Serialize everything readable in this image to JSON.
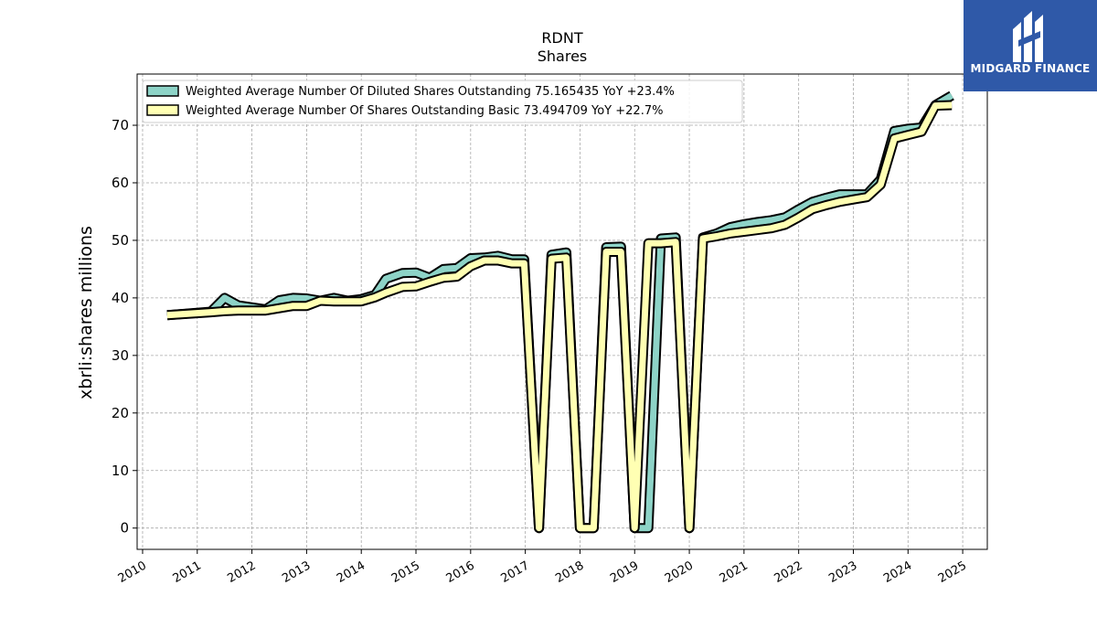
{
  "chart_data": {
    "type": "line",
    "title": "RDNT",
    "subtitle": "Shares",
    "ylabel": "xbrli:shares millions",
    "xlabel": "",
    "xlim": [
      2009.9,
      2025.45
    ],
    "ylim": [
      -3.7,
      78.9
    ],
    "yticks": [
      0,
      10,
      20,
      30,
      40,
      50,
      60,
      70
    ],
    "xticks": [
      "2010",
      "2011",
      "2012",
      "2013",
      "2014",
      "2015",
      "2016",
      "2017",
      "2018",
      "2019",
      "2020",
      "2021",
      "2022",
      "2023",
      "2024",
      "2025"
    ],
    "grid": true,
    "legend_position": "top-left",
    "series": [
      {
        "name": "Weighted Average Number Of Diluted Shares Outstanding  75.165435 YoY +23.4%",
        "color": "#8dd3c7",
        "points": [
          [
            2010.45,
            37.0
          ],
          [
            2011.25,
            37.6
          ],
          [
            2011.5,
            40.0
          ],
          [
            2011.75,
            38.7
          ],
          [
            2012.25,
            38.0
          ],
          [
            2012.5,
            39.6
          ],
          [
            2012.75,
            40.0
          ],
          [
            2013.0,
            39.9
          ],
          [
            2013.25,
            39.5
          ],
          [
            2013.5,
            40.0
          ],
          [
            2013.75,
            39.5
          ],
          [
            2014.0,
            39.8
          ],
          [
            2014.25,
            40.5
          ],
          [
            2014.45,
            43.3
          ],
          [
            2014.75,
            44.3
          ],
          [
            2015.0,
            44.4
          ],
          [
            2015.25,
            43.5
          ],
          [
            2015.5,
            45.0
          ],
          [
            2015.75,
            45.2
          ],
          [
            2016.0,
            46.9
          ],
          [
            2016.25,
            47.0
          ],
          [
            2016.5,
            47.3
          ],
          [
            2016.75,
            46.7
          ],
          [
            2016.98,
            46.7
          ],
          [
            2017.25,
            0.0
          ],
          [
            2017.48,
            47.5
          ],
          [
            2017.75,
            47.9
          ],
          [
            2018.0,
            0.0
          ],
          [
            2018.25,
            0.0
          ],
          [
            2018.48,
            48.8
          ],
          [
            2018.75,
            48.9
          ],
          [
            2019.0,
            0.0
          ],
          [
            2019.25,
            0.0
          ],
          [
            2019.48,
            50.3
          ],
          [
            2019.75,
            50.5
          ],
          [
            2020.0,
            0.0
          ],
          [
            2020.25,
            50.5
          ],
          [
            2020.5,
            51.2
          ],
          [
            2020.75,
            52.3
          ],
          [
            2021.0,
            52.8
          ],
          [
            2021.25,
            53.2
          ],
          [
            2021.5,
            53.5
          ],
          [
            2021.75,
            54.0
          ],
          [
            2022.0,
            55.4
          ],
          [
            2022.25,
            56.7
          ],
          [
            2022.5,
            57.4
          ],
          [
            2022.75,
            58.0
          ],
          [
            2023.0,
            58.0
          ],
          [
            2023.25,
            58.0
          ],
          [
            2023.5,
            60.6
          ],
          [
            2023.75,
            69.0
          ],
          [
            2024.0,
            69.4
          ],
          [
            2024.25,
            69.6
          ],
          [
            2024.5,
            73.5
          ],
          [
            2024.8,
            75.165435
          ]
        ]
      },
      {
        "name": "Weighted Average Number Of Shares Outstanding Basic  73.494709 YoY +22.7%",
        "color": "#ffffb3",
        "points": [
          [
            2010.45,
            37.0
          ],
          [
            2011.25,
            37.5
          ],
          [
            2011.5,
            37.7
          ],
          [
            2011.75,
            37.8
          ],
          [
            2012.25,
            37.8
          ],
          [
            2012.5,
            38.2
          ],
          [
            2012.75,
            38.6
          ],
          [
            2013.0,
            38.6
          ],
          [
            2013.25,
            39.5
          ],
          [
            2013.5,
            39.4
          ],
          [
            2013.75,
            39.4
          ],
          [
            2014.0,
            39.4
          ],
          [
            2014.25,
            40.1
          ],
          [
            2014.45,
            40.9
          ],
          [
            2014.75,
            41.9
          ],
          [
            2015.0,
            42.0
          ],
          [
            2015.25,
            42.8
          ],
          [
            2015.5,
            43.5
          ],
          [
            2015.75,
            43.7
          ],
          [
            2016.0,
            45.5
          ],
          [
            2016.25,
            46.5
          ],
          [
            2016.5,
            46.5
          ],
          [
            2016.75,
            46.0
          ],
          [
            2016.98,
            46.0
          ],
          [
            2017.25,
            0.0
          ],
          [
            2017.48,
            46.8
          ],
          [
            2017.75,
            47.0
          ],
          [
            2018.0,
            0.0
          ],
          [
            2018.25,
            0.0
          ],
          [
            2018.48,
            48.0
          ],
          [
            2018.75,
            48.0
          ],
          [
            2019.0,
            0.0
          ],
          [
            2019.25,
            49.5
          ],
          [
            2019.48,
            49.5
          ],
          [
            2019.75,
            49.7
          ],
          [
            2020.0,
            0.0
          ],
          [
            2020.25,
            50.3
          ],
          [
            2020.5,
            50.7
          ],
          [
            2020.75,
            51.2
          ],
          [
            2021.0,
            51.5
          ],
          [
            2021.25,
            51.8
          ],
          [
            2021.5,
            52.1
          ],
          [
            2021.75,
            52.7
          ],
          [
            2022.0,
            54.0
          ],
          [
            2022.25,
            55.4
          ],
          [
            2022.5,
            56.1
          ],
          [
            2022.75,
            56.7
          ],
          [
            2023.0,
            57.1
          ],
          [
            2023.25,
            57.5
          ],
          [
            2023.5,
            59.7
          ],
          [
            2023.75,
            67.7
          ],
          [
            2024.0,
            68.3
          ],
          [
            2024.25,
            68.9
          ],
          [
            2024.5,
            73.4
          ],
          [
            2024.8,
            73.494709
          ]
        ]
      }
    ]
  },
  "logo": {
    "text": "MIDGARD FINANCE",
    "icon": "midgard-logo-icon",
    "background": "#2f59a8"
  }
}
